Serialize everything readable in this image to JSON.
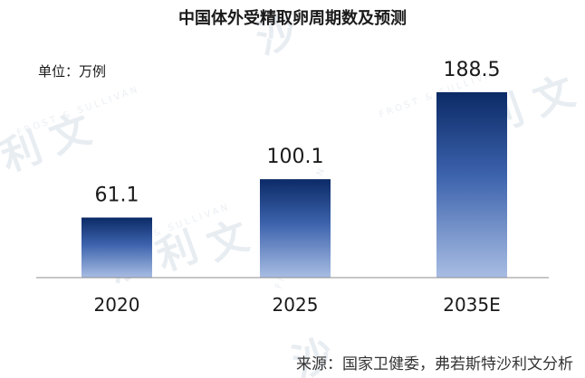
{
  "chart_data": {
    "type": "bar",
    "title": "中国体外受精取卵周期数及预测",
    "unit_label": "单位：万例",
    "categories": [
      "2020",
      "2025",
      "2035E"
    ],
    "values": [
      61.1,
      100.1,
      188.5
    ],
    "value_labels": [
      "61.1",
      "100.1",
      "188.5"
    ],
    "ylim": [
      0,
      200
    ],
    "grid": false,
    "legend": "none",
    "colors": {
      "bar_top": "#0b2a66",
      "bar_mid": "#3d63ad",
      "bar_bottom": "#a8bde3",
      "axis": "#8c8c8c"
    }
  },
  "source": "来源：国家卫健委，弗若斯特沙利文分析",
  "watermark": {
    "glyphs": [
      "沙",
      "利",
      "文"
    ],
    "latin": "FROST & SULLIVAN"
  }
}
